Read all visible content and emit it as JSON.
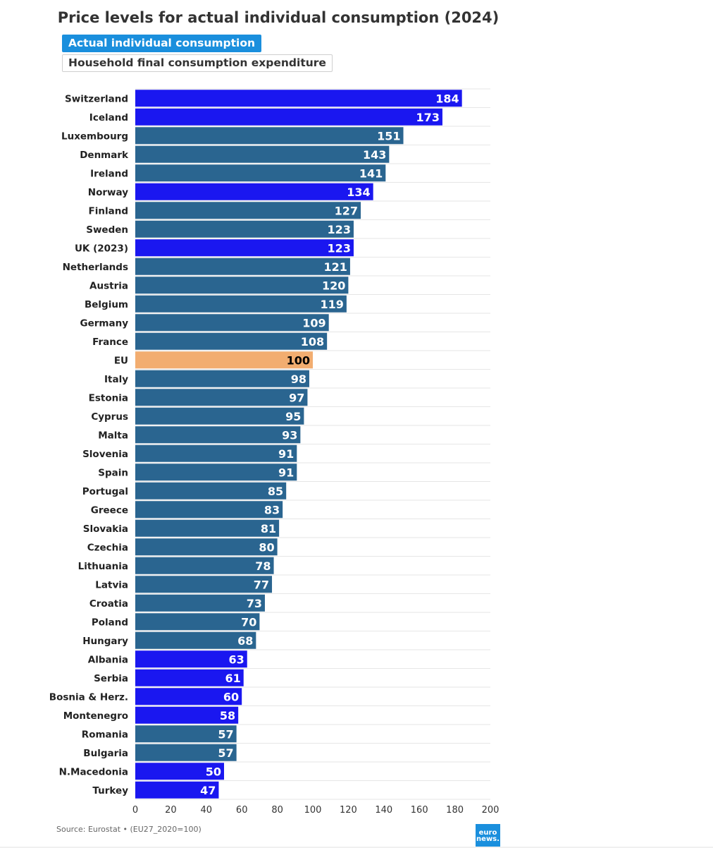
{
  "title": "Price levels for actual individual consumption (2024)",
  "tabs": [
    {
      "label": "Actual individual consumption",
      "active": true
    },
    {
      "label": "Household final consumption expenditure",
      "active": false
    }
  ],
  "colors": {
    "eu_member": "#2a6590",
    "non_eu": "#1a17f0",
    "eu_average": "#f2ad70",
    "label_on_dark": "#ffffff",
    "label_on_light": "#000000",
    "tab_active": "#1a8fdd"
  },
  "chart_data": {
    "type": "bar",
    "orientation": "horizontal",
    "title": "Price levels for actual individual consumption (2024)",
    "categories": [
      "Switzerland",
      "Iceland",
      "Luxembourg",
      "Denmark",
      "Ireland",
      "Norway",
      "Finland",
      "Sweden",
      "UK (2023)",
      "Netherlands",
      "Austria",
      "Belgium",
      "Germany",
      "France",
      "EU",
      "Italy",
      "Estonia",
      "Cyprus",
      "Malta",
      "Slovenia",
      "Spain",
      "Portugal",
      "Greece",
      "Slovakia",
      "Czechia",
      "Lithuania",
      "Latvia",
      "Croatia",
      "Poland",
      "Hungary",
      "Albania",
      "Serbia",
      "Bosnia & Herz.",
      "Montenegro",
      "Romania",
      "Bulgaria",
      "N.Macedonia",
      "Turkey"
    ],
    "values": [
      184,
      173,
      151,
      143,
      141,
      134,
      127,
      123,
      123,
      121,
      120,
      119,
      109,
      108,
      100,
      98,
      97,
      95,
      93,
      91,
      91,
      85,
      83,
      81,
      80,
      78,
      77,
      73,
      70,
      68,
      63,
      61,
      60,
      58,
      57,
      57,
      50,
      47
    ],
    "groups": [
      "non_eu",
      "non_eu",
      "eu_member",
      "eu_member",
      "eu_member",
      "non_eu",
      "eu_member",
      "eu_member",
      "non_eu",
      "eu_member",
      "eu_member",
      "eu_member",
      "eu_member",
      "eu_member",
      "eu_average",
      "eu_member",
      "eu_member",
      "eu_member",
      "eu_member",
      "eu_member",
      "eu_member",
      "eu_member",
      "eu_member",
      "eu_member",
      "eu_member",
      "eu_member",
      "eu_member",
      "eu_member",
      "eu_member",
      "eu_member",
      "non_eu",
      "non_eu",
      "non_eu",
      "non_eu",
      "eu_member",
      "eu_member",
      "non_eu",
      "non_eu"
    ],
    "xlim": [
      0,
      200
    ],
    "xticks": [
      0,
      20,
      40,
      60,
      80,
      100,
      120,
      140,
      160,
      180,
      200
    ],
    "grid": true
  },
  "footer": {
    "source": "Source: Eurostat • (EU27_2020=100)",
    "logo_line1": "euro",
    "logo_line2": "news."
  }
}
